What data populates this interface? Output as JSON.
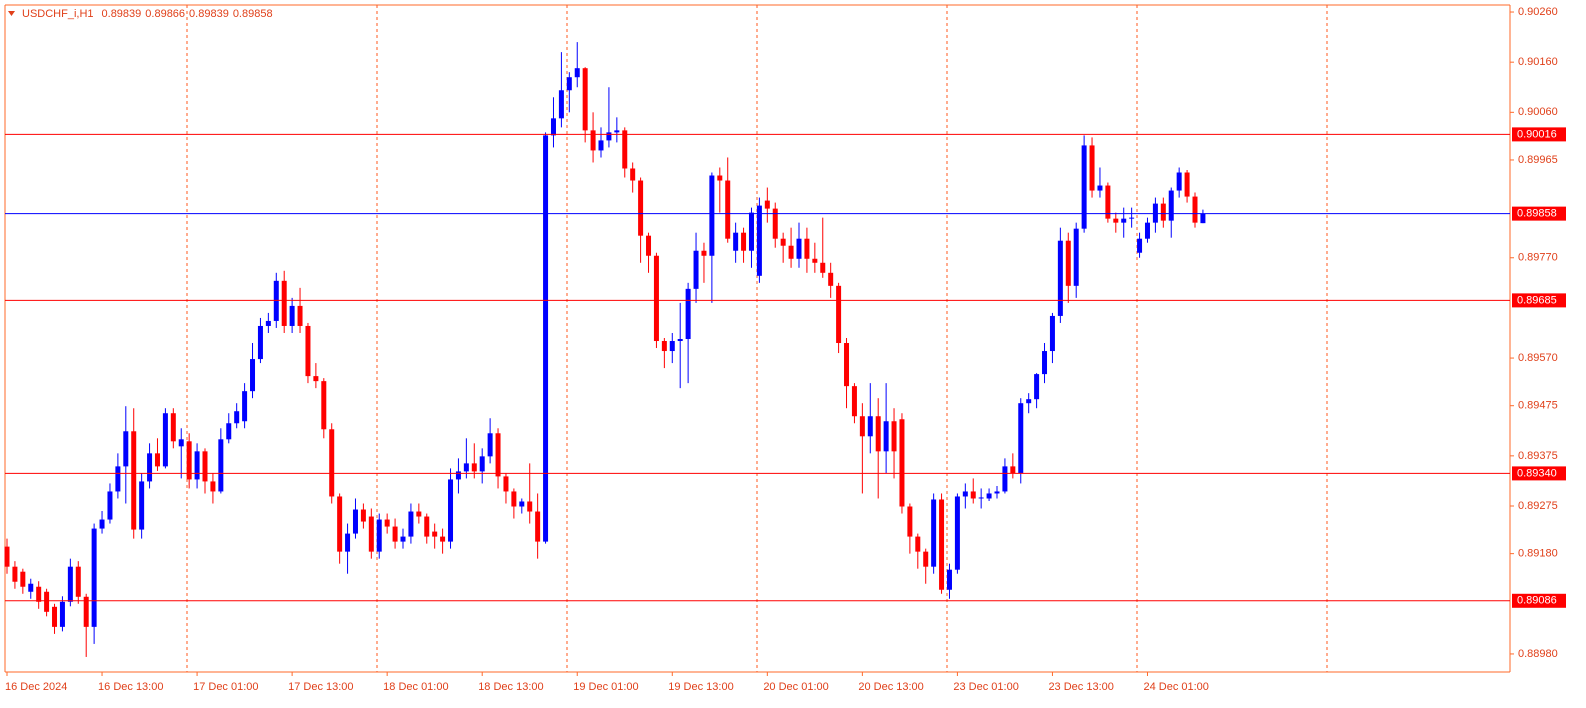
{
  "chart_data": {
    "type": "candlestick",
    "title": "USDCHF_i,H1",
    "up_color": "#0000ff",
    "down_color": "#ff0000",
    "level_color": "#ff0000",
    "bid_color": "#0000ff",
    "grid": true,
    "categories": [
      "16 Dec 2024",
      null,
      null,
      null,
      null,
      null,
      null,
      null,
      null,
      null,
      null,
      null,
      "16 Dec 13:00",
      null,
      null,
      null,
      null,
      null,
      null,
      null,
      null,
      null,
      null,
      null,
      "17 Dec 01:00",
      null,
      null,
      null,
      null,
      null,
      null,
      null,
      null,
      null,
      null,
      null,
      "17 Dec 13:00",
      null,
      null,
      null,
      null,
      null,
      null,
      null,
      null,
      null,
      null,
      null,
      "18 Dec 01:00",
      null,
      null,
      null,
      null,
      null,
      null,
      null,
      null,
      null,
      null,
      null,
      "18 Dec 13:00",
      null,
      null,
      null,
      null,
      null,
      null,
      null,
      null,
      null,
      null,
      null,
      "19 Dec 01:00",
      null,
      null,
      null,
      null,
      null,
      null,
      null,
      null,
      null,
      null,
      null,
      "19 Dec 13:00",
      null,
      null,
      null,
      null,
      null,
      null,
      null,
      null,
      null,
      null,
      null,
      "20 Dec 01:00",
      null,
      null,
      null,
      null,
      null,
      null,
      null,
      null,
      null,
      null,
      null,
      "20 Dec 13:00",
      null,
      null,
      null,
      null,
      null,
      null,
      null,
      null,
      null,
      null,
      null,
      "23 Dec 01:00",
      null,
      null,
      null,
      null,
      null,
      null,
      null,
      null,
      null,
      null,
      null,
      "23 Dec 13:00",
      null,
      null,
      null,
      null,
      null,
      null,
      null,
      null,
      null,
      null,
      null,
      "24 Dec 01:00",
      null,
      null,
      null,
      null,
      null,
      null,
      null
    ],
    "open": [
      0.89194,
      0.89154,
      0.89144,
      0.89104,
      0.89114,
      0.89104,
      0.89074,
      0.89034,
      0.89084,
      0.89154,
      0.89094,
      0.89034,
      0.8923,
      0.89248,
      0.89304,
      0.89354,
      0.89424,
      0.89228,
      0.89324,
      0.8938,
      0.89354,
      0.8946,
      0.89394,
      0.89404,
      0.89328,
      0.89384,
      0.89324,
      0.89304,
      0.89408,
      0.8944,
      0.89444,
      0.89504,
      0.89568,
      0.89634,
      0.89644,
      0.89724,
      0.89634,
      0.89674,
      0.89634,
      0.89534,
      0.89524,
      0.89428,
      0.89294,
      0.89184,
      0.8922,
      0.89268,
      0.89254,
      0.89184,
      0.89248,
      0.89234,
      0.89204,
      0.89214,
      0.89264,
      0.89254,
      0.89224,
      0.89214,
      0.89204,
      0.89328,
      0.89344,
      0.8936,
      0.89344,
      0.89374,
      0.8942,
      0.89334,
      0.89304,
      0.89274,
      0.89284,
      0.89264,
      0.89204,
      0.90014,
      0.90048,
      0.90104,
      0.9013,
      0.90148,
      0.90024,
      0.89984,
      0.90004,
      0.9002,
      0.90024,
      0.89948,
      0.89924,
      0.89814,
      0.89774,
      0.89604,
      0.89584,
      0.89604,
      0.89608,
      0.89708,
      0.89784,
      0.89774,
      0.89934,
      0.89924,
      0.89784,
      0.8982,
      0.89784,
      0.89734,
      0.89884,
      0.89868,
      0.89808,
      0.89794,
      0.89768,
      0.89808,
      0.89768,
      0.8976,
      0.8974,
      0.89714,
      0.896,
      0.89514,
      0.89454,
      0.89414,
      0.89454,
      0.89384,
      0.89444,
      0.89448,
      0.89274,
      0.89214,
      0.89184,
      0.89154,
      0.89288,
      0.89108,
      0.89148,
      0.89294,
      0.89304,
      0.8929,
      0.8929,
      0.893,
      0.89304,
      0.89354,
      0.8934,
      0.8948,
      0.89488,
      0.89538,
      0.89584,
      0.89654,
      0.89804,
      0.89714,
      0.89828,
      0.89994,
      0.89904,
      0.89914,
      0.89848,
      0.8984,
      0.89848,
      0.8978,
      0.89808,
      0.8984,
      0.89878,
      0.89844,
      0.89904,
      0.8994,
      0.89892,
      0.89839
    ],
    "high": [
      0.8921,
      0.89165,
      0.8915,
      0.8913,
      0.89125,
      0.8911,
      0.8908,
      0.89095,
      0.8917,
      0.89165,
      0.891,
      0.8924,
      0.89265,
      0.8932,
      0.8938,
      0.89474,
      0.8947,
      0.8934,
      0.894,
      0.8941,
      0.8947,
      0.8947,
      0.8943,
      0.8942,
      0.894,
      0.8939,
      0.8934,
      0.8943,
      0.8946,
      0.8948,
      0.8952,
      0.896,
      0.8965,
      0.8966,
      0.8974,
      0.89744,
      0.8969,
      0.8971,
      0.8964,
      0.8956,
      0.8953,
      0.8944,
      0.893,
      0.8924,
      0.8929,
      0.8928,
      0.8927,
      0.8926,
      0.8926,
      0.8925,
      0.8923,
      0.8928,
      0.8928,
      0.8926,
      0.8924,
      0.8923,
      0.8935,
      0.8937,
      0.8941,
      0.894,
      0.8939,
      0.8945,
      0.8943,
      0.8934,
      0.8931,
      0.8929,
      0.8936,
      0.893,
      0.9002,
      0.9009,
      0.9018,
      0.9014,
      0.902,
      0.9015,
      0.9006,
      0.9003,
      0.9011,
      0.9005,
      0.9003,
      0.8996,
      0.8993,
      0.8982,
      0.8978,
      0.8961,
      0.8962,
      0.8968,
      0.8972,
      0.8982,
      0.898,
      0.8994,
      0.8995,
      0.8997,
      0.8984,
      0.8983,
      0.8987,
      0.8989,
      0.8991,
      0.8988,
      0.8982,
      0.8983,
      0.8984,
      0.8983,
      0.898,
      0.8985,
      0.8976,
      0.8972,
      0.8961,
      0.8952,
      0.8948,
      0.8952,
      0.8949,
      0.8952,
      0.8947,
      0.8946,
      0.8928,
      0.8922,
      0.8919,
      0.893,
      0.893,
      0.8916,
      0.893,
      0.8932,
      0.8933,
      0.8931,
      0.8931,
      0.89315,
      0.8937,
      0.8938,
      0.8949,
      0.895,
      0.8954,
      0.896,
      0.8966,
      0.8983,
      0.8982,
      0.8984,
      0.90014,
      0.9001,
      0.8995,
      0.8992,
      0.8986,
      0.8987,
      0.8987,
      0.8982,
      0.8985,
      0.8989,
      0.8989,
      0.8991,
      0.8995,
      0.89945,
      0.899,
      0.89866
    ],
    "low": [
      0.8914,
      0.8911,
      0.891,
      0.8909,
      0.8907,
      0.89055,
      0.8902,
      0.89025,
      0.89075,
      0.8908,
      0.88974,
      0.89,
      0.8922,
      0.8924,
      0.8929,
      0.8928,
      0.8921,
      0.8921,
      0.8931,
      0.89345,
      0.8935,
      0.8939,
      0.8933,
      0.8931,
      0.8931,
      0.893,
      0.8928,
      0.893,
      0.894,
      0.8943,
      0.8943,
      0.8949,
      0.8956,
      0.8962,
      0.8963,
      0.8962,
      0.8962,
      0.8962,
      0.8952,
      0.8951,
      0.8941,
      0.8928,
      0.8916,
      0.8914,
      0.8921,
      0.8923,
      0.8917,
      0.8917,
      0.8922,
      0.8919,
      0.8919,
      0.892,
      0.8924,
      0.892,
      0.8919,
      0.8918,
      0.8919,
      0.893,
      0.8933,
      0.8933,
      0.8932,
      0.8936,
      0.8931,
      0.8928,
      0.8925,
      0.8926,
      0.8924,
      0.8917,
      0.892,
      0.8999,
      0.9003,
      0.9006,
      0.9011,
      0.9,
      0.8996,
      0.8997,
      0.8999,
      0.9,
      0.8993,
      0.899,
      0.8976,
      0.8974,
      0.8959,
      0.8955,
      0.8956,
      0.8951,
      0.8952,
      0.8968,
      0.8972,
      0.8968,
      0.8986,
      0.898,
      0.8976,
      0.8976,
      0.8975,
      0.8972,
      0.8984,
      0.8979,
      0.8976,
      0.8975,
      0.8975,
      0.8974,
      0.8974,
      0.8973,
      0.8969,
      0.8958,
      0.8947,
      0.8944,
      0.893,
      0.8938,
      0.8929,
      0.8934,
      0.8933,
      0.8926,
      0.8918,
      0.8915,
      0.8912,
      0.8914,
      0.891,
      0.8909,
      0.8914,
      0.8927,
      0.8928,
      0.8927,
      0.89285,
      0.8929,
      0.893,
      0.8933,
      0.8932,
      0.8946,
      0.8947,
      0.8952,
      0.8956,
      0.8964,
      0.8968,
      0.8969,
      0.8982,
      0.8989,
      0.8989,
      0.8984,
      0.8982,
      0.8981,
      0.8983,
      0.8977,
      0.898,
      0.8982,
      0.8983,
      0.8981,
      0.8989,
      0.8988,
      0.8983,
      0.89839
    ],
    "close": [
      0.89154,
      0.89124,
      0.89114,
      0.8912,
      0.89084,
      0.89064,
      0.89034,
      0.89084,
      0.89154,
      0.89094,
      0.89034,
      0.8923,
      0.89248,
      0.89304,
      0.89354,
      0.89424,
      0.89228,
      0.89324,
      0.8938,
      0.89354,
      0.8946,
      0.89404,
      0.89408,
      0.89328,
      0.89384,
      0.89324,
      0.89304,
      0.89408,
      0.8944,
      0.89464,
      0.89504,
      0.89568,
      0.89634,
      0.89644,
      0.89724,
      0.89634,
      0.89674,
      0.89634,
      0.89534,
      0.89524,
      0.89428,
      0.89294,
      0.89184,
      0.8922,
      0.89268,
      0.89244,
      0.89184,
      0.89248,
      0.89234,
      0.89204,
      0.89214,
      0.89264,
      0.89254,
      0.89214,
      0.89214,
      0.89204,
      0.89328,
      0.89344,
      0.8936,
      0.89344,
      0.89374,
      0.8942,
      0.89334,
      0.89304,
      0.89274,
      0.89284,
      0.89264,
      0.89204,
      0.90014,
      0.90048,
      0.90104,
      0.9013,
      0.90148,
      0.90024,
      0.89984,
      0.90004,
      0.9002,
      0.90024,
      0.89948,
      0.89924,
      0.89814,
      0.89774,
      0.89604,
      0.89584,
      0.89604,
      0.89608,
      0.89708,
      0.89784,
      0.89774,
      0.89934,
      0.89924,
      0.89808,
      0.8982,
      0.89784,
      0.8986,
      0.89874,
      0.89868,
      0.89808,
      0.89794,
      0.89768,
      0.89808,
      0.89768,
      0.8976,
      0.8974,
      0.89714,
      0.896,
      0.89514,
      0.89454,
      0.89414,
      0.89454,
      0.89384,
      0.89444,
      0.89384,
      0.89274,
      0.89214,
      0.89184,
      0.89154,
      0.89288,
      0.89108,
      0.89148,
      0.89294,
      0.89304,
      0.8929,
      0.89292,
      0.893,
      0.89304,
      0.89354,
      0.8934,
      0.8948,
      0.89488,
      0.89538,
      0.89584,
      0.89654,
      0.89804,
      0.89714,
      0.89828,
      0.89994,
      0.89904,
      0.89914,
      0.89848,
      0.8984,
      0.89848,
      0.8985,
      0.89808,
      0.8984,
      0.89878,
      0.89844,
      0.89904,
      0.8994,
      0.89892,
      0.8984,
      0.89858
    ],
    "ylim": [
      0.88944,
      0.90274
    ],
    "yticks": [
      {
        "value": 0.9026,
        "label": "0.90260"
      },
      {
        "value": 0.9016,
        "label": "0.90160"
      },
      {
        "value": 0.9006,
        "label": "0.90060"
      },
      0.89965,
      {
        "value": 0.8977,
        "label": "0.89770"
      },
      {
        "value": 0.8957,
        "label": "0.89570"
      },
      0.89475,
      0.89375,
      0.89275,
      {
        "value": 0.8918,
        "label": "0.89180"
      },
      {
        "value": 0.8898,
        "label": "0.88980"
      }
    ],
    "levels": [
      0.90016,
      0.89685,
      {
        "value": 0.8934,
        "label": "0.89340"
      },
      0.89086
    ],
    "bid": 0.89858
  }
}
